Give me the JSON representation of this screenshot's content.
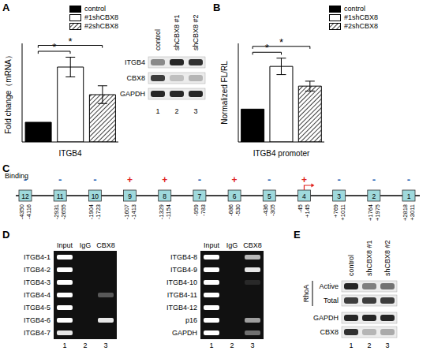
{
  "chart_data": [
    {
      "panel": "A",
      "type": "bar",
      "y_label": "Fold change（mRNA）",
      "categories": [
        "ITGB4"
      ],
      "series": [
        {
          "name": "control",
          "color": "#000000",
          "values": [
            1
          ],
          "errors": [
            0
          ]
        },
        {
          "name": "#1shCBX8",
          "color": "#ffffff",
          "values": [
            3.8
          ],
          "errors": [
            0.5
          ]
        },
        {
          "name": "#2shCBX8",
          "color": "#000000",
          "values": [
            2.4
          ],
          "errors": [
            0.45
          ]
        }
      ],
      "ylim": [
        0,
        5
      ],
      "tick_labels": "x",
      "legend": "top right",
      "annotations": [
        {
          "from": "control",
          "to": "#1shCBX8",
          "text": "*"
        },
        {
          "from": "control",
          "to": "#2shCBX8",
          "text": "*"
        }
      ]
    },
    {
      "panel": "B",
      "type": "bar",
      "y_label": "Normalized FL/RL",
      "categories": [
        "ITGB4 promoter"
      ],
      "series": [
        {
          "name": "control",
          "color": "#000000",
          "values": [
            1
          ],
          "errors": [
            0
          ]
        },
        {
          "name": "#1shCBX8",
          "color": "#ffffff",
          "values": [
            2.3
          ],
          "errors": [
            0.25
          ]
        },
        {
          "name": "#2shCBX8",
          "color": "#000000",
          "values": [
            1.7
          ],
          "errors": [
            0.15
          ]
        }
      ],
      "ylim": [
        0,
        3
      ],
      "tick_labels": "x",
      "legend": "top right",
      "annotations": [
        {
          "from": "control",
          "to": "#1shCBX8",
          "text": "*"
        },
        {
          "from": "control",
          "to": "#2shCBX8",
          "text": "*"
        }
      ]
    }
  ],
  "blot_A": {
    "panel": "A",
    "lanes": [
      "control",
      "shCBX8 #1",
      "shCBX8 #2"
    ],
    "lane_numbers": [
      1,
      2,
      3
    ],
    "rows": [
      {
        "label": "ITGB4",
        "bands": [
          0.45,
          0.9,
          0.85
        ]
      },
      {
        "label": "CBX8",
        "bands": [
          0.8,
          0.2,
          0.25
        ]
      },
      {
        "label": "GAPDH",
        "bands": [
          0.9,
          0.9,
          0.9
        ]
      }
    ]
  },
  "diagram_C": {
    "panel": "C",
    "row_label": "Binding",
    "tss": "4",
    "regions": [
      {
        "id": "12",
        "binding": "-",
        "start": "-4350",
        "end": "-4116"
      },
      {
        "id": "11",
        "binding": "-",
        "start": "-2931",
        "end": "-2655"
      },
      {
        "id": "10",
        "binding": "-",
        "start": "-1904",
        "end": "-1723"
      },
      {
        "id": "9",
        "binding": "+",
        "start": "-1607",
        "end": "-1413"
      },
      {
        "id": "8",
        "binding": "+",
        "start": "-1329",
        "end": "-1154"
      },
      {
        "id": "7",
        "binding": "-",
        "start": "-959",
        "end": "-783"
      },
      {
        "id": "6",
        "binding": "+",
        "start": "-686",
        "end": "-530"
      },
      {
        "id": "5",
        "binding": "-",
        "start": "-436",
        "end": "-305"
      },
      {
        "id": "4",
        "binding": "+",
        "start": "-45",
        "end": "+145"
      },
      {
        "id": "3",
        "binding": "-",
        "start": "+769",
        "end": "+1011"
      },
      {
        "id": "2",
        "binding": "-",
        "start": "+1764",
        "end": "+1975"
      },
      {
        "id": "1",
        "binding": "-",
        "start": "+2818",
        "end": "+3011"
      }
    ]
  },
  "gel_D": {
    "panel": "D",
    "lanes": [
      "Input",
      "IgG",
      "CBX8"
    ],
    "lane_numbers": [
      1,
      2,
      3
    ],
    "gels": [
      [
        {
          "label": "ITGB4-1",
          "bands": [
            1,
            0,
            0
          ]
        },
        {
          "label": "ITGB4-2",
          "bands": [
            1,
            0,
            0
          ]
        },
        {
          "label": "ITGB4-3",
          "bands": [
            1,
            0,
            0
          ]
        },
        {
          "label": "ITGB4-4",
          "bands": [
            1,
            0,
            0.3
          ]
        },
        {
          "label": "ITGB4-5",
          "bands": [
            1,
            0,
            0
          ]
        },
        {
          "label": "ITGB4-6",
          "bands": [
            1,
            0,
            0.9
          ]
        },
        {
          "label": "ITGB4-7",
          "bands": [
            0.9,
            0,
            0
          ]
        }
      ],
      [
        {
          "label": "ITGB4-8",
          "bands": [
            1,
            0,
            0.7
          ]
        },
        {
          "label": "ITGB4-9",
          "bands": [
            1,
            0,
            0.9
          ]
        },
        {
          "label": "ITGB4-10",
          "bands": [
            1,
            0,
            0.1
          ]
        },
        {
          "label": "ITGB4-11",
          "bands": [
            1,
            0,
            0
          ]
        },
        {
          "label": "ITGB4-12",
          "bands": [
            1,
            0,
            0
          ]
        },
        {
          "label": "p16",
          "bands": [
            1,
            0,
            0.6
          ]
        },
        {
          "label": "GAPDH",
          "bands": [
            1,
            0,
            0.4
          ]
        }
      ]
    ]
  },
  "blot_E": {
    "panel": "E",
    "lanes": [
      "control",
      "shCBX8 #1",
      "shCBX8 #2"
    ],
    "lane_numbers": [
      1,
      2,
      3
    ],
    "rows": [
      {
        "group": "RhoA",
        "rows": [
          {
            "label": "Active",
            "bands": [
              0.9,
              0.5,
              0.55
            ]
          },
          {
            "label": "Total",
            "bands": [
              0.8,
              0.8,
              0.8
            ]
          }
        ]
      },
      {
        "label": "GAPDH",
        "bands": [
          0.9,
          0.9,
          0.9
        ]
      },
      {
        "label": "CBX8",
        "bands": [
          0.85,
          0.25,
          0.3
        ]
      }
    ]
  }
}
